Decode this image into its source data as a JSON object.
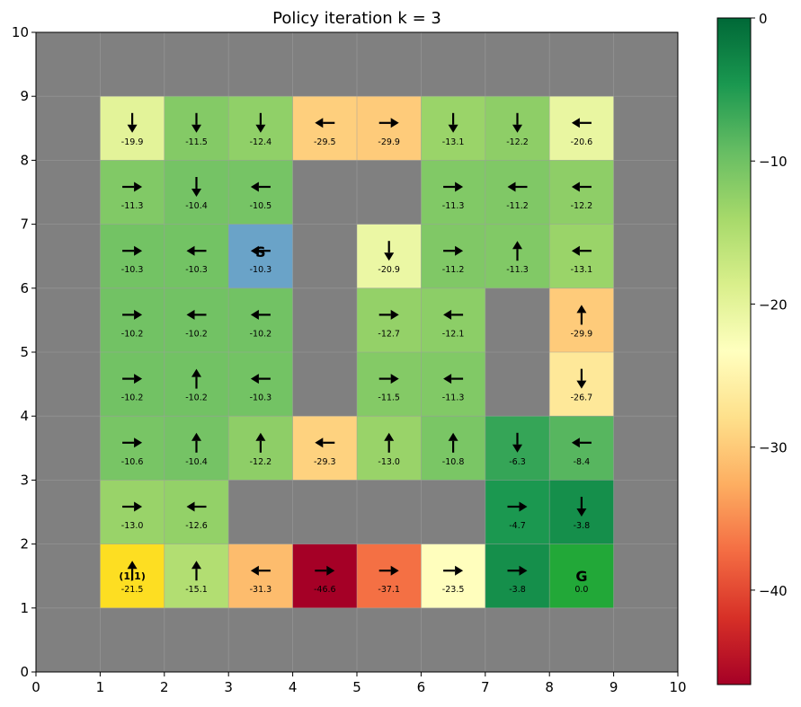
{
  "chart_data": {
    "type": "heatmap",
    "title": "Policy iteration  k = 3",
    "xlim": [
      0,
      10
    ],
    "ylim": [
      0,
      10
    ],
    "x_ticks": [
      "0",
      "1",
      "2",
      "3",
      "4",
      "5",
      "6",
      "7",
      "8",
      "9",
      "10"
    ],
    "y_ticks": [
      "0",
      "1",
      "2",
      "3",
      "4",
      "5",
      "6",
      "7",
      "8",
      "9",
      "10"
    ],
    "grid": true,
    "colormap": "RdYlGn",
    "colorbar": {
      "vmin": -46.6,
      "vmax": 0,
      "ticks": [
        "0",
        "−10",
        "−20",
        "−30",
        "−40"
      ],
      "tick_values": [
        0,
        -10,
        -20,
        -30,
        -40
      ]
    },
    "wall_color": "#808080",
    "start_color": "#6aa3c8",
    "start_label": "S",
    "goal_label": "G",
    "agent_label": "(1,1)",
    "agent_color": "#fdde22",
    "cells": [
      {
        "x": 1,
        "y": 8,
        "value": -19.9,
        "label": "-19.9",
        "action": "down"
      },
      {
        "x": 2,
        "y": 8,
        "value": -11.5,
        "label": "-11.5",
        "action": "down"
      },
      {
        "x": 3,
        "y": 8,
        "value": -12.4,
        "label": "-12.4",
        "action": "down"
      },
      {
        "x": 4,
        "y": 8,
        "value": -29.5,
        "label": "-29.5",
        "action": "left"
      },
      {
        "x": 5,
        "y": 8,
        "value": -29.9,
        "label": "-29.9",
        "action": "right"
      },
      {
        "x": 6,
        "y": 8,
        "value": -13.1,
        "label": "-13.1",
        "action": "down"
      },
      {
        "x": 7,
        "y": 8,
        "value": -12.2,
        "label": "-12.2",
        "action": "down"
      },
      {
        "x": 8,
        "y": 8,
        "value": -20.6,
        "label": "-20.6",
        "action": "left"
      },
      {
        "x": 1,
        "y": 7,
        "value": -11.3,
        "label": "-11.3",
        "action": "right"
      },
      {
        "x": 2,
        "y": 7,
        "value": -10.4,
        "label": "-10.4",
        "action": "down"
      },
      {
        "x": 3,
        "y": 7,
        "value": -10.5,
        "label": "-10.5",
        "action": "left"
      },
      {
        "x": 6,
        "y": 7,
        "value": -11.3,
        "label": "-11.3",
        "action": "right"
      },
      {
        "x": 7,
        "y": 7,
        "value": -11.2,
        "label": "-11.2",
        "action": "left"
      },
      {
        "x": 8,
        "y": 7,
        "value": -12.2,
        "label": "-12.2",
        "action": "left"
      },
      {
        "x": 1,
        "y": 6,
        "value": -10.3,
        "label": "-10.3",
        "action": "right"
      },
      {
        "x": 2,
        "y": 6,
        "value": -10.3,
        "label": "-10.3",
        "action": "left"
      },
      {
        "x": 3,
        "y": 6,
        "value": -10.3,
        "label": "-10.3",
        "action": "left",
        "start": true
      },
      {
        "x": 5,
        "y": 6,
        "value": -20.9,
        "label": "-20.9",
        "action": "down"
      },
      {
        "x": 6,
        "y": 6,
        "value": -11.2,
        "label": "-11.2",
        "action": "right"
      },
      {
        "x": 7,
        "y": 6,
        "value": -11.3,
        "label": "-11.3",
        "action": "up"
      },
      {
        "x": 8,
        "y": 6,
        "value": -13.1,
        "label": "-13.1",
        "action": "left"
      },
      {
        "x": 1,
        "y": 5,
        "value": -10.2,
        "label": "-10.2",
        "action": "right"
      },
      {
        "x": 2,
        "y": 5,
        "value": -10.2,
        "label": "-10.2",
        "action": "left"
      },
      {
        "x": 3,
        "y": 5,
        "value": -10.2,
        "label": "-10.2",
        "action": "left"
      },
      {
        "x": 5,
        "y": 5,
        "value": -12.7,
        "label": "-12.7",
        "action": "right"
      },
      {
        "x": 6,
        "y": 5,
        "value": -12.1,
        "label": "-12.1",
        "action": "left"
      },
      {
        "x": 8,
        "y": 5,
        "value": -29.9,
        "label": "-29.9",
        "action": "up"
      },
      {
        "x": 1,
        "y": 4,
        "value": -10.2,
        "label": "-10.2",
        "action": "right"
      },
      {
        "x": 2,
        "y": 4,
        "value": -10.2,
        "label": "-10.2",
        "action": "up"
      },
      {
        "x": 3,
        "y": 4,
        "value": -10.3,
        "label": "-10.3",
        "action": "left"
      },
      {
        "x": 5,
        "y": 4,
        "value": -11.5,
        "label": "-11.5",
        "action": "right"
      },
      {
        "x": 6,
        "y": 4,
        "value": -11.3,
        "label": "-11.3",
        "action": "left"
      },
      {
        "x": 8,
        "y": 4,
        "value": -26.7,
        "label": "-26.7",
        "action": "down"
      },
      {
        "x": 1,
        "y": 3,
        "value": -10.6,
        "label": "-10.6",
        "action": "right"
      },
      {
        "x": 2,
        "y": 3,
        "value": -10.4,
        "label": "-10.4",
        "action": "up"
      },
      {
        "x": 3,
        "y": 3,
        "value": -12.2,
        "label": "-12.2",
        "action": "up"
      },
      {
        "x": 4,
        "y": 3,
        "value": -29.3,
        "label": "-29.3",
        "action": "left"
      },
      {
        "x": 5,
        "y": 3,
        "value": -13.0,
        "label": "-13.0",
        "action": "up"
      },
      {
        "x": 6,
        "y": 3,
        "value": -10.8,
        "label": "-10.8",
        "action": "up"
      },
      {
        "x": 7,
        "y": 3,
        "value": -6.3,
        "label": "-6.3",
        "action": "down"
      },
      {
        "x": 8,
        "y": 3,
        "value": -8.4,
        "label": "-8.4",
        "action": "left"
      },
      {
        "x": 1,
        "y": 2,
        "value": -13.0,
        "label": "-13.0",
        "action": "right"
      },
      {
        "x": 2,
        "y": 2,
        "value": -12.6,
        "label": "-12.6",
        "action": "left"
      },
      {
        "x": 7,
        "y": 2,
        "value": -4.7,
        "label": "-4.7",
        "action": "right"
      },
      {
        "x": 8,
        "y": 2,
        "value": -3.8,
        "label": "-3.8",
        "action": "down"
      },
      {
        "x": 1,
        "y": 1,
        "value": -21.5,
        "label": "-21.5",
        "action": "up",
        "agent": true
      },
      {
        "x": 2,
        "y": 1,
        "value": -15.1,
        "label": "-15.1",
        "action": "up"
      },
      {
        "x": 3,
        "y": 1,
        "value": -31.3,
        "label": "-31.3",
        "action": "left"
      },
      {
        "x": 4,
        "y": 1,
        "value": -46.6,
        "label": "-46.6",
        "action": "right"
      },
      {
        "x": 5,
        "y": 1,
        "value": -37.1,
        "label": "-37.1",
        "action": "right"
      },
      {
        "x": 6,
        "y": 1,
        "value": -23.5,
        "label": "-23.5",
        "action": "right"
      },
      {
        "x": 7,
        "y": 1,
        "value": -3.8,
        "label": "-3.8",
        "action": "right"
      },
      {
        "x": 8,
        "y": 1,
        "value": 0.0,
        "label": "0.0",
        "action": "none",
        "goal": true,
        "color": "#22a838"
      }
    ]
  }
}
